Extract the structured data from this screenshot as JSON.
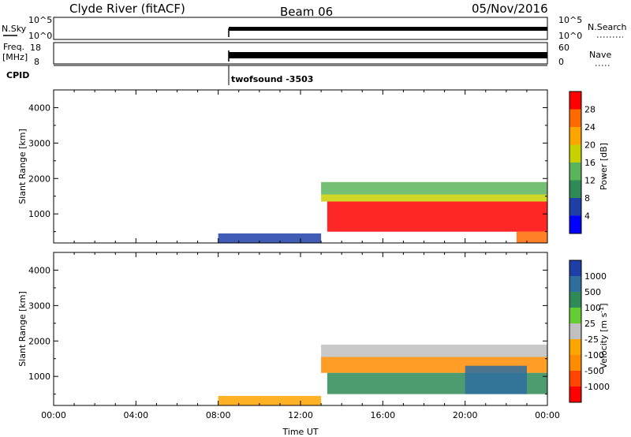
{
  "header": {
    "station": "Clyde River (fitACF)",
    "beam": "Beam 06",
    "date": "05/Nov/2016"
  },
  "strip": {
    "nsky_label": "N.Sky",
    "nsky_ticks": [
      "10^5",
      "10^0"
    ],
    "nsearch_label": "N.Search",
    "nsearch_ticks": [
      "10^5",
      "10^0"
    ],
    "freq_label": "Freq.",
    "freq_unit": "[MHz]",
    "freq_ticks": [
      "18",
      "8"
    ],
    "nave_label": "Nave",
    "nave_ticks": [
      "60",
      "0"
    ],
    "cpid_label": "CPID",
    "cpid_value": "twofsound -3503"
  },
  "colors": {
    "power_scale": [
      "#0000ff",
      "#1f3fa8",
      "#2e8b57",
      "#5ab45a",
      "#c8d000",
      "#ffa500",
      "#ff6a00",
      "#ff0000"
    ],
    "velocity_scale": [
      "#1f3fa8",
      "#2e6fa0",
      "#2e8b57",
      "#66cc33",
      "#c0c0c0",
      "#ffa500",
      "#ff8c00",
      "#ff4500",
      "#ff0000"
    ]
  },
  "chart_data": [
    {
      "type": "heatmap",
      "name": "power",
      "ylabel": "Slant Range [km]",
      "xlabel": "",
      "x_ticks": [
        "00:00",
        "04:00",
        "08:00",
        "12:00",
        "16:00",
        "20:00",
        "00:00"
      ],
      "x_range_hours": [
        0,
        24
      ],
      "y_ticks": [
        1000,
        2000,
        3000,
        4000
      ],
      "ylim": [
        180,
        4500
      ],
      "colorbar_label": "Power [dB]",
      "colorbar_ticks": [
        4,
        8,
        12,
        16,
        20,
        24,
        28
      ],
      "colorbar_range": [
        0,
        30
      ],
      "regions": [
        {
          "t0": 8.0,
          "t1": 13.0,
          "r0": 180,
          "r1": 450,
          "value": 6
        },
        {
          "t0": 13.0,
          "t1": 24.0,
          "r0": 1550,
          "r1": 1900,
          "value": 12
        },
        {
          "t0": 13.0,
          "t1": 24.0,
          "r0": 1350,
          "r1": 1550,
          "value": 18
        },
        {
          "t0": 13.3,
          "t1": 24.0,
          "r0": 500,
          "r1": 1350,
          "value": 27
        },
        {
          "t0": 22.5,
          "t1": 24.0,
          "r0": 180,
          "r1": 500,
          "value": 26
        }
      ]
    },
    {
      "type": "heatmap",
      "name": "velocity",
      "ylabel": "Slant Range [km]",
      "xlabel": "Time UT",
      "x_ticks": [
        "00:00",
        "04:00",
        "08:00",
        "12:00",
        "16:00",
        "20:00",
        "00:00"
      ],
      "x_range_hours": [
        0,
        24
      ],
      "y_ticks": [
        1000,
        2000,
        3000,
        4000
      ],
      "ylim": [
        180,
        4500
      ],
      "colorbar_label": "Velocity [m s^-1]",
      "colorbar_ticks": [
        "1000",
        "500",
        "100",
        "25",
        "-25",
        "-100",
        "-500",
        "-1000"
      ],
      "regions": [
        {
          "t0": 8.0,
          "t1": 13.0,
          "r0": 180,
          "r1": 450,
          "value": -100
        },
        {
          "t0": 13.0,
          "t1": 24.0,
          "r0": 1550,
          "r1": 1900,
          "value": 0
        },
        {
          "t0": 13.0,
          "t1": 24.0,
          "r0": 1100,
          "r1": 1550,
          "value": -300
        },
        {
          "t0": 13.3,
          "t1": 24.0,
          "r0": 500,
          "r1": 1100,
          "value": 100
        },
        {
          "t0": 20.0,
          "t1": 23.0,
          "r0": 500,
          "r1": 1300,
          "value": 600
        }
      ]
    }
  ]
}
